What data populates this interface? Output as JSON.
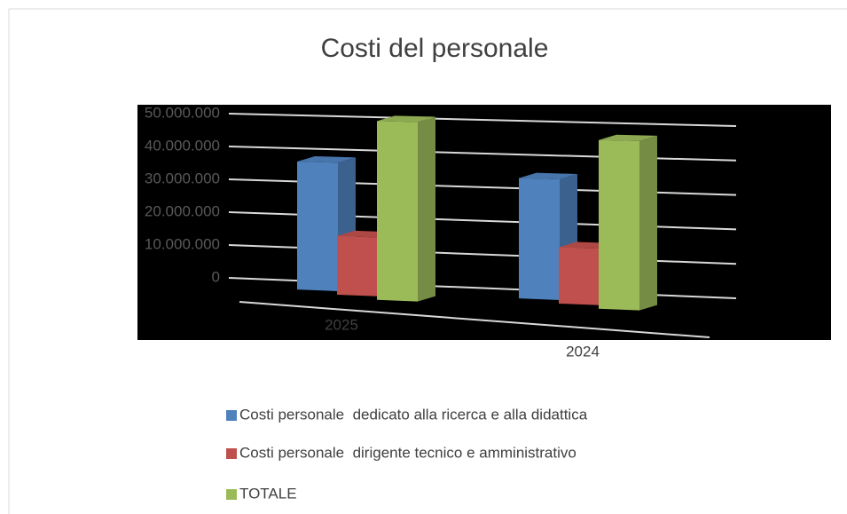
{
  "chart_data": {
    "type": "bar3d",
    "title": "Costi del personale",
    "categories": [
      "2025",
      "2024"
    ],
    "series": [
      {
        "name": "Costi personale  dedicato alla ricerca e alla didattica",
        "color": "#4f81bd",
        "values": [
          36000000,
          33000000
        ]
      },
      {
        "name": "Costi personale  dirigente tecnico e amministrativo",
        "color": "#c0504d",
        "values": [
          15000000,
          14000000
        ]
      },
      {
        "name": "TOTALE",
        "color": "#9bbb59",
        "values": [
          51000000,
          47000000
        ]
      }
    ],
    "ylim": [
      0,
      50000000
    ],
    "yticks": [
      0,
      {
        "value": 10000000,
        "label": "10.000.000"
      },
      {
        "value": 20000000,
        "label": "20.000.000"
      },
      {
        "value": 30000000,
        "label": "30.000.000"
      },
      {
        "value": 40000000,
        "label": "40.000.000"
      },
      {
        "value": 50000000,
        "label": "50.000.000"
      }
    ],
    "grid": true,
    "legend": "bottom"
  }
}
